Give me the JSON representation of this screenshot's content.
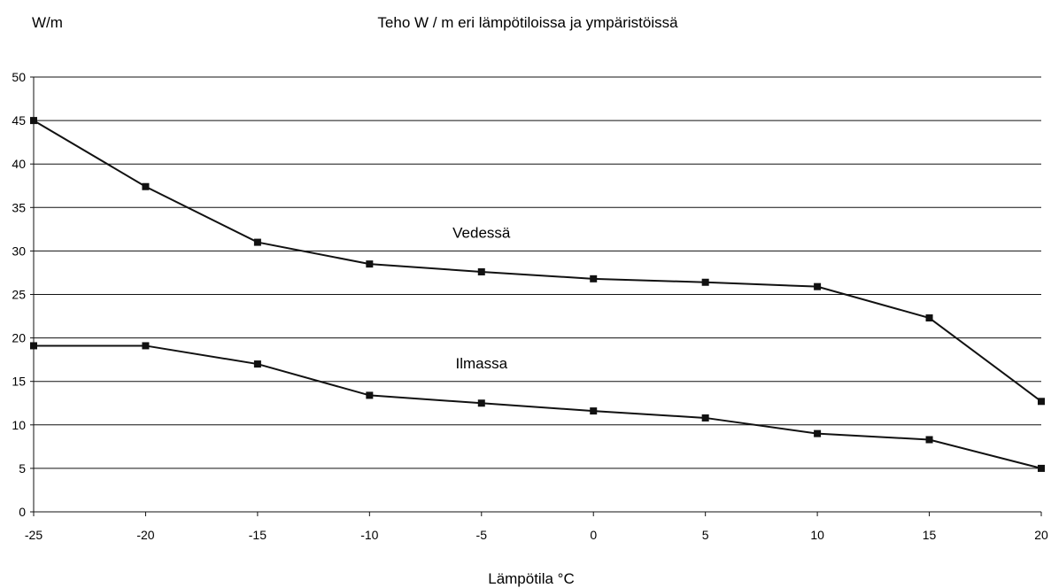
{
  "chart_data": {
    "type": "line",
    "title": "Teho W / m eri lämpötiloissa ja ympäristöissä",
    "ylabel": "W/m",
    "xlabel": "Lämpötila °C",
    "x": [
      -25,
      -20,
      -15,
      -10,
      -5,
      0,
      5,
      10,
      15,
      20
    ],
    "xlim": [
      -25,
      20
    ],
    "ylim": [
      0,
      50
    ],
    "yticks": [
      0,
      5,
      10,
      15,
      20,
      25,
      30,
      35,
      40,
      45,
      50
    ],
    "grid": "horizontal",
    "legend": "none",
    "series": [
      {
        "name": "Vedessä",
        "values": [
          45,
          37.4,
          31,
          28.5,
          27.6,
          26.8,
          26.4,
          25.9,
          22.3,
          12.7
        ]
      },
      {
        "name": "Ilmassa",
        "values": [
          19.1,
          19.1,
          17,
          13.4,
          12.5,
          11.6,
          10.8,
          9,
          8.3,
          5
        ]
      }
    ],
    "annotations": [
      {
        "text": "Vedessä",
        "x": -5,
        "y": 31.5
      },
      {
        "text": "Ilmassa",
        "x": -5,
        "y": 16.5
      }
    ],
    "colors": {
      "line": "#111111",
      "grid": "#111111",
      "marker": "#111111"
    }
  }
}
